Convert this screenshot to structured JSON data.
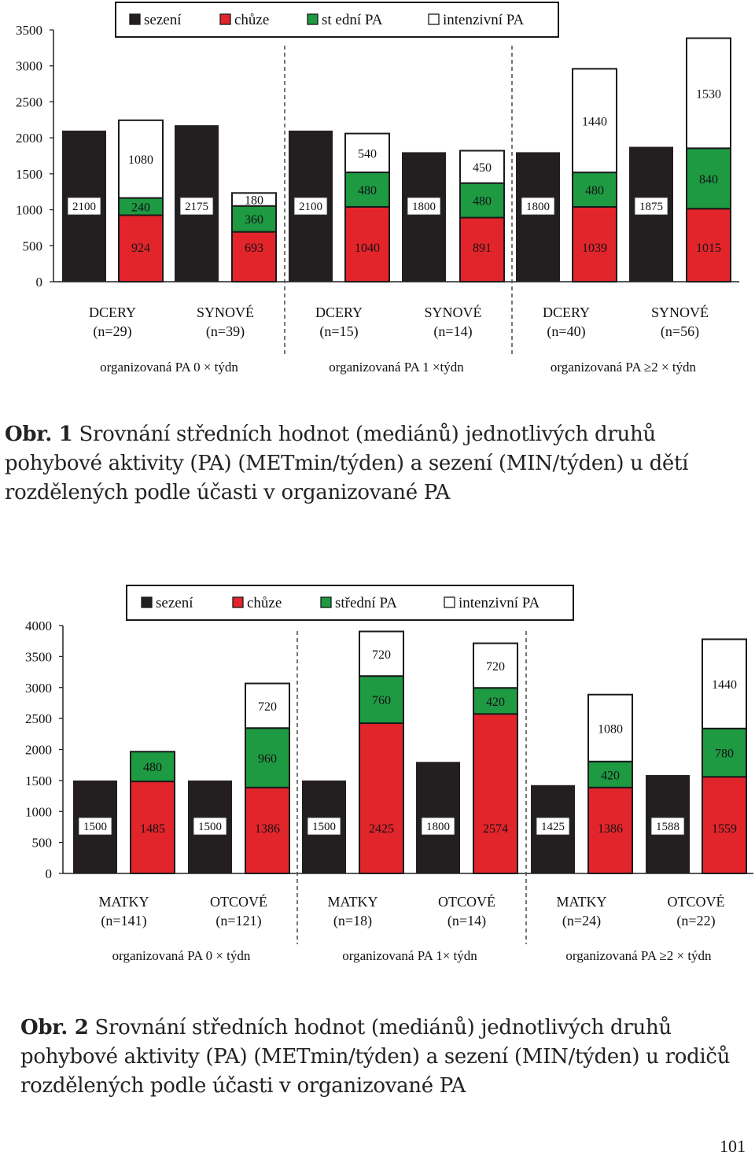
{
  "colors": {
    "sezeni": "#231f20",
    "chuze": "#e2252b",
    "stredni": "#1e9a43",
    "intenzivni": "#ffffff",
    "outline": "#1a1a1a"
  },
  "chart_data": [
    {
      "type": "bar",
      "stacked": true,
      "grid": false,
      "legend_position": "top",
      "legend": [
        "sezení",
        "chůze",
        "st ední PA",
        "intenzivní PA"
      ],
      "ylim": [
        0,
        3500
      ],
      "yticks": [
        "0",
        "500",
        "1000",
        "1500",
        "2000",
        "2500",
        "3000",
        "3500"
      ],
      "groups": [
        {
          "label": "organizovaná PA 0 × týdn",
          "bars": [
            {
              "line1": "DCERY",
              "line2": "(n=29)",
              "sezeni": 2100,
              "chuze": 924,
              "stredni": 240,
              "intenzivni": 1080
            },
            {
              "line1": "SYNOVÉ",
              "line2": "(n=39)",
              "sezeni": 2175,
              "chuze": 693,
              "stredni": 360,
              "intenzivni": 180
            }
          ]
        },
        {
          "label": "organizovaná PA 1 ×týdn",
          "bars": [
            {
              "line1": "DCERY",
              "line2": "(n=15)",
              "sezeni": 2100,
              "chuze": 1040,
              "stredni": 480,
              "intenzivni": 540
            },
            {
              "line1": "SYNOVÉ",
              "line2": "(n=14)",
              "sezeni": 1800,
              "chuze": 891,
              "stredni": 480,
              "intenzivni": 450
            }
          ]
        },
        {
          "label": "organizovaná PA ≥2 × týdn",
          "bars": [
            {
              "line1": "DCERY",
              "line2": "(n=40)",
              "sezeni": 1800,
              "chuze": 1039,
              "stredni": 480,
              "intenzivni": 1440
            },
            {
              "line1": "SYNOVÉ",
              "line2": "(n=56)",
              "sezeni": 1875,
              "chuze": 1015,
              "stredni": 840,
              "intenzivni": 1530
            }
          ]
        }
      ]
    },
    {
      "type": "bar",
      "stacked": true,
      "grid": false,
      "legend_position": "top",
      "legend": [
        "sezení",
        "chůze",
        "střední PA",
        "intenzivní PA"
      ],
      "ylim": [
        0,
        4000
      ],
      "yticks": [
        "0",
        "500",
        "1000",
        "1500",
        "2000",
        "2500",
        "3000",
        "3500",
        "4000"
      ],
      "groups": [
        {
          "label": "organizovaná PA 0 × týdn",
          "bars": [
            {
              "line1": "MATKY",
              "line2": "(n=141)",
              "sezeni": 1500,
              "chuze": 1485,
              "stredni": 480,
              "intenzivni": 0
            },
            {
              "line1": "OTCOVÉ",
              "line2": "(n=121)",
              "sezeni": 1500,
              "chuze": 1386,
              "stredni": 960,
              "intenzivni": 720
            }
          ]
        },
        {
          "label": "organizovaná PA 1× týdn",
          "bars": [
            {
              "line1": "MATKY",
              "line2": "(n=18)",
              "sezeni": 1500,
              "chuze": 2425,
              "stredni": 760,
              "intenzivni": 720
            },
            {
              "line1": "OTCOVÉ",
              "line2": "(n=14)",
              "sezeni": 1800,
              "chuze": 2574,
              "stredni": 420,
              "intenzivni": 720
            }
          ]
        },
        {
          "label": "organizovaná PA ≥2 × týdn",
          "bars": [
            {
              "line1": "MATKY",
              "line2": "(n=24)",
              "sezeni": 1425,
              "chuze": 1386,
              "stredni": 420,
              "intenzivni": 1080
            },
            {
              "line1": "OTCOVÉ",
              "line2": "(n=22)",
              "sezeni": 1588,
              "chuze": 1559,
              "stredni": 780,
              "intenzivni": 1440
            }
          ]
        }
      ]
    }
  ],
  "captions": [
    {
      "label": "Obr. 1",
      "text": " Srovnání středních hodnot (mediánů) jednotlivých druhů pohybové aktivity (PA) (METmin/týden) a sezení (MIN/týden) u dětí rozdělených podle účasti v organizované PA"
    },
    {
      "label": "Obr. 2",
      "text": " Srovnání středních hodnot (mediánů) jednotlivých druhů pohybové aktivity (PA) (METmin/týden) a sezení (MIN/týden) u rodičů rozdělených podle účasti v organizované PA"
    }
  ],
  "page_number": "101"
}
